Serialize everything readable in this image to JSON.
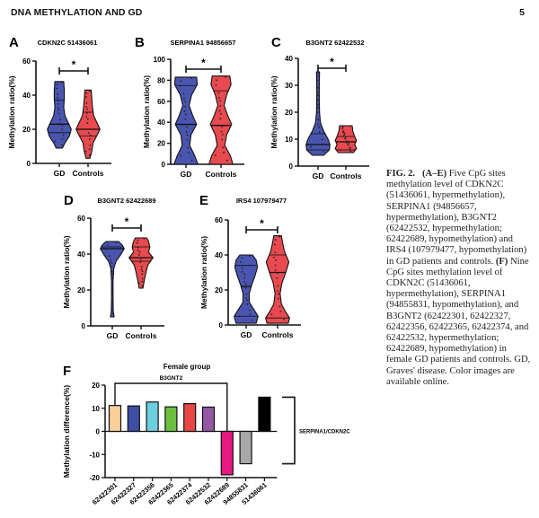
{
  "header": {
    "running_title": "DNA METHYLATION AND GD",
    "page_number": "5"
  },
  "caption": {
    "label": "FIG. 2.",
    "part1_ref": "(A–E)",
    "part1_text": " Five CpG sites methylation level of CDKN2C (51436061, hypermethylation), SERPINA1 (94856657, hypermethylation), B3GNT2 (62422532, hypermethylation; 62422689, hypomethylation) and IRS4 (107979477, hypomethylation) in GD patients and controls. ",
    "part2_ref": "(F)",
    "part2_text": " Nine CpG sites methylation level of CDKN2C (51436061, hypermethylation), SERPINA1 (94855831, hypomethylation), and B3GNT2 (62422301, 62422327, 62422356, 62422365, 62422374, and 62422532, hypermethylation; 62422689, hypomethylation) in female GD patients and controls. GD, Graves' disease. Color images are available online."
  },
  "colors": {
    "gd": "#4a55b0",
    "controls": "#e84a4f"
  },
  "chart_data": [
    {
      "panel": "A",
      "type": "violin",
      "title": "CDKN2C 51436061",
      "ylabel": "Methylation ratio(%)",
      "ylim": [
        0,
        60
      ],
      "yticks": [
        0,
        20,
        40,
        60
      ],
      "categories": [
        "GD",
        "Controls"
      ],
      "significance": "*",
      "series": [
        {
          "name": "GD",
          "min": 9,
          "max": 48,
          "q1": 18,
          "median": 23,
          "q3": 37,
          "shape": [
            [
              9,
              0.25
            ],
            [
              12,
              0.45
            ],
            [
              16,
              0.8
            ],
            [
              20,
              0.95
            ],
            [
              24,
              0.7
            ],
            [
              28,
              0.45
            ],
            [
              33,
              0.35
            ],
            [
              38,
              0.4
            ],
            [
              43,
              0.4
            ],
            [
              48,
              0.35
            ]
          ]
        },
        {
          "name": "Controls",
          "min": 3,
          "max": 43,
          "q1": 16,
          "median": 20,
          "q3": 30,
          "shape": [
            [
              3,
              0.15
            ],
            [
              7,
              0.3
            ],
            [
              12,
              0.4
            ],
            [
              17,
              0.75
            ],
            [
              20,
              0.95
            ],
            [
              24,
              0.7
            ],
            [
              28,
              0.45
            ],
            [
              33,
              0.35
            ],
            [
              38,
              0.3
            ],
            [
              43,
              0.25
            ]
          ]
        }
      ]
    },
    {
      "panel": "B",
      "type": "violin",
      "title": "SERPINA1 94856657",
      "ylabel": "Methylation ratio(%)",
      "ylim": [
        0,
        100
      ],
      "yticks": [
        0,
        20,
        40,
        60,
        80,
        100
      ],
      "categories": [
        "GD",
        "Controls"
      ],
      "significance": "*",
      "series": [
        {
          "name": "GD",
          "min": 0,
          "max": 83,
          "q1": 38,
          "median": 38,
          "q3": 75,
          "shape": [
            [
              0,
              0.95
            ],
            [
              8,
              0.7
            ],
            [
              18,
              0.3
            ],
            [
              28,
              0.4
            ],
            [
              38,
              0.85
            ],
            [
              46,
              0.55
            ],
            [
              56,
              0.25
            ],
            [
              66,
              0.45
            ],
            [
              76,
              0.9
            ],
            [
              83,
              0.85
            ]
          ]
        },
        {
          "name": "Controls",
          "min": 0,
          "max": 84,
          "q1": 37,
          "median": 37,
          "q3": 70,
          "shape": [
            [
              0,
              0.95
            ],
            [
              8,
              0.75
            ],
            [
              18,
              0.3
            ],
            [
              28,
              0.45
            ],
            [
              38,
              0.85
            ],
            [
              46,
              0.55
            ],
            [
              56,
              0.25
            ],
            [
              66,
              0.45
            ],
            [
              76,
              0.8
            ],
            [
              84,
              0.7
            ]
          ]
        }
      ]
    },
    {
      "panel": "C",
      "type": "violin",
      "title": "B3GNT2 62422532",
      "ylabel": "Methylation ratio(%)",
      "ylim": [
        0,
        40
      ],
      "yticks": [
        0,
        10,
        20,
        30,
        40
      ],
      "categories": [
        "GD",
        "Controls"
      ],
      "significance": "*",
      "series": [
        {
          "name": "GD",
          "min": 4,
          "max": 35,
          "q1": 6,
          "median": 8,
          "q3": 12,
          "shape": [
            [
              4,
              0.45
            ],
            [
              6,
              0.9
            ],
            [
              8,
              0.95
            ],
            [
              10,
              0.8
            ],
            [
              13,
              0.45
            ],
            [
              16,
              0.2
            ],
            [
              20,
              0.12
            ],
            [
              25,
              0.1
            ],
            [
              30,
              0.1
            ],
            [
              35,
              0.12
            ]
          ]
        },
        {
          "name": "Controls",
          "min": 5,
          "max": 15,
          "q1": 6,
          "median": 9,
          "q3": 11,
          "shape": [
            [
              5,
              0.6
            ],
            [
              6.5,
              0.85
            ],
            [
              8,
              0.7
            ],
            [
              9.5,
              0.85
            ],
            [
              11,
              0.7
            ],
            [
              13,
              0.55
            ],
            [
              15,
              0.5
            ]
          ]
        }
      ]
    },
    {
      "panel": "D",
      "type": "violin",
      "title": "B3GNT2 62422689",
      "ylabel": "Methylation ratio(%)",
      "ylim": [
        0,
        60
      ],
      "yticks": [
        0,
        20,
        40,
        60
      ],
      "categories": [
        "GD",
        "Controls"
      ],
      "significance": "*",
      "series": [
        {
          "name": "GD",
          "min": 5,
          "max": 47,
          "q1": 43,
          "median": 43,
          "q3": 44,
          "shape": [
            [
              5,
              0.15
            ],
            [
              8,
              0.08
            ],
            [
              15,
              0.06
            ],
            [
              25,
              0.06
            ],
            [
              32,
              0.12
            ],
            [
              36,
              0.3
            ],
            [
              40,
              0.7
            ],
            [
              43,
              0.95
            ],
            [
              45,
              0.8
            ],
            [
              47,
              0.5
            ]
          ]
        },
        {
          "name": "Controls",
          "min": 21,
          "max": 49,
          "q1": 36,
          "median": 38,
          "q3": 44,
          "shape": [
            [
              21,
              0.15
            ],
            [
              25,
              0.25
            ],
            [
              30,
              0.4
            ],
            [
              34,
              0.55
            ],
            [
              38,
              0.95
            ],
            [
              41,
              0.6
            ],
            [
              44,
              0.7
            ],
            [
              47,
              0.6
            ],
            [
              49,
              0.45
            ]
          ]
        }
      ]
    },
    {
      "panel": "E",
      "type": "violin",
      "title": "IRS4 107979477",
      "ylabel": "Methylation ratio(%)",
      "ylim": [
        0,
        60
      ],
      "yticks": [
        0,
        20,
        40,
        60
      ],
      "categories": [
        "GD",
        "Controls"
      ],
      "significance": "*",
      "series": [
        {
          "name": "GD",
          "min": 1,
          "max": 40,
          "q1": 5,
          "median": 22,
          "q3": 34,
          "shape": [
            [
              1,
              0.8
            ],
            [
              5,
              0.95
            ],
            [
              9,
              0.6
            ],
            [
              13,
              0.25
            ],
            [
              18,
              0.25
            ],
            [
              23,
              0.45
            ],
            [
              28,
              0.7
            ],
            [
              33,
              0.9
            ],
            [
              37,
              0.8
            ],
            [
              40,
              0.5
            ]
          ]
        },
        {
          "name": "Controls",
          "min": 1,
          "max": 51,
          "q1": 4,
          "median": 30,
          "q3": 40,
          "shape": [
            [
              1,
              0.85
            ],
            [
              4,
              0.95
            ],
            [
              8,
              0.6
            ],
            [
              12,
              0.3
            ],
            [
              18,
              0.2
            ],
            [
              24,
              0.35
            ],
            [
              30,
              0.65
            ],
            [
              36,
              0.9
            ],
            [
              42,
              0.55
            ],
            [
              47,
              0.4
            ],
            [
              51,
              0.3
            ]
          ]
        }
      ]
    },
    {
      "panel": "F",
      "type": "bar",
      "title": "Female group",
      "ylabel": "Methylation difference(%)",
      "ylim": [
        -20,
        20
      ],
      "yticks": [
        -20,
        -10,
        0,
        10,
        20
      ],
      "categories": [
        "62422301",
        "62422327",
        "62422356",
        "62422365",
        "62422374",
        "62422532",
        "62422689",
        "94855831",
        "51436061"
      ],
      "values": [
        11.2,
        11.0,
        12.7,
        10.6,
        12.0,
        10.5,
        -18.8,
        -14.0,
        14.8
      ],
      "bar_colors": [
        "#fbcf9c",
        "#3f4fa3",
        "#6ccfe0",
        "#6cbf3f",
        "#e84545",
        "#9457a6",
        "#e6197f",
        "#a8a8a8",
        "#000000"
      ],
      "group_labels": [
        {
          "label": "B3GNT2",
          "from": "62422301",
          "to": "62422689"
        },
        {
          "label": "SERPINA1/CDKN2C",
          "from": "94855831",
          "to": "51436061"
        }
      ]
    }
  ]
}
